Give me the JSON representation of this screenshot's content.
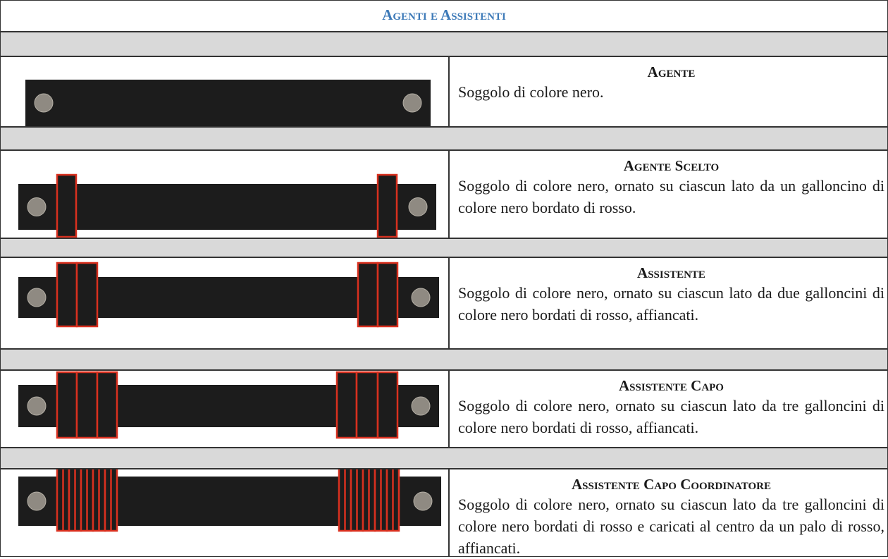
{
  "header": {
    "title": "Agenti e Assistenti"
  },
  "rows": [
    {
      "title": "Agente",
      "description": "Soggolo di colore nero."
    },
    {
      "title": "Agente Scelto",
      "description": "Soggolo di colore nero, ornato su ciascun lato da un galloncino di colore nero bordato di rosso."
    },
    {
      "title": "Assistente",
      "description": "Soggolo di colore nero, ornato su ciascun lato da due galloncini di colore nero bordati di rosso, affiancati."
    },
    {
      "title": "Assistente Capo",
      "description": "Soggolo di colore nero, ornato su ciascun lato da tre galloncini di colore nero bordati di rosso, affiancati."
    },
    {
      "title": "Assistente Capo Coordinatore",
      "description": "Soggolo di colore nero, ornato su ciascun lato da tre galloncini di colore nero bordati di rosso e caricati al centro da un palo di rosso, affiancati."
    }
  ]
}
